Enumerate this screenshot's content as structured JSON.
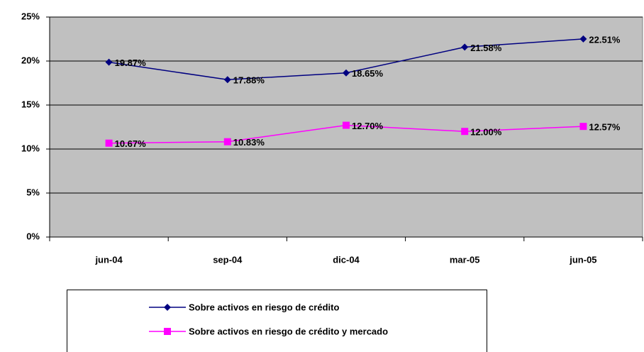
{
  "chart_data": {
    "type": "line",
    "categories": [
      "jun-04",
      "sep-04",
      "dic-04",
      "mar-05",
      "jun-05"
    ],
    "series": [
      {
        "name": "Sobre activos en riesgo de crédito",
        "color": "#000080",
        "marker": "diamond",
        "values": [
          19.87,
          17.88,
          18.65,
          21.58,
          22.51
        ],
        "value_labels": [
          "19.87%",
          "17.88%",
          "18.65%",
          "21.58%",
          "22.51%"
        ]
      },
      {
        "name": "Sobre activos en riesgo de crédito y mercado",
        "color": "#ff00ff",
        "marker": "square",
        "values": [
          10.67,
          10.83,
          12.7,
          12.0,
          12.57
        ],
        "value_labels": [
          "10.67%",
          "10.83%",
          "12.70%",
          "12.00%",
          "12.57%"
        ]
      }
    ],
    "ylim": [
      0,
      25
    ],
    "yticks": [
      {
        "value": 0,
        "label": "0%"
      },
      {
        "value": 5,
        "label": "5%"
      },
      {
        "value": 10,
        "label": "10%"
      },
      {
        "value": 15,
        "label": "15%"
      },
      {
        "value": 20,
        "label": "20%"
      },
      {
        "value": 25,
        "label": "25%"
      }
    ],
    "grid": true,
    "plot_background": "#c0c0c0",
    "legend": "bottom"
  }
}
